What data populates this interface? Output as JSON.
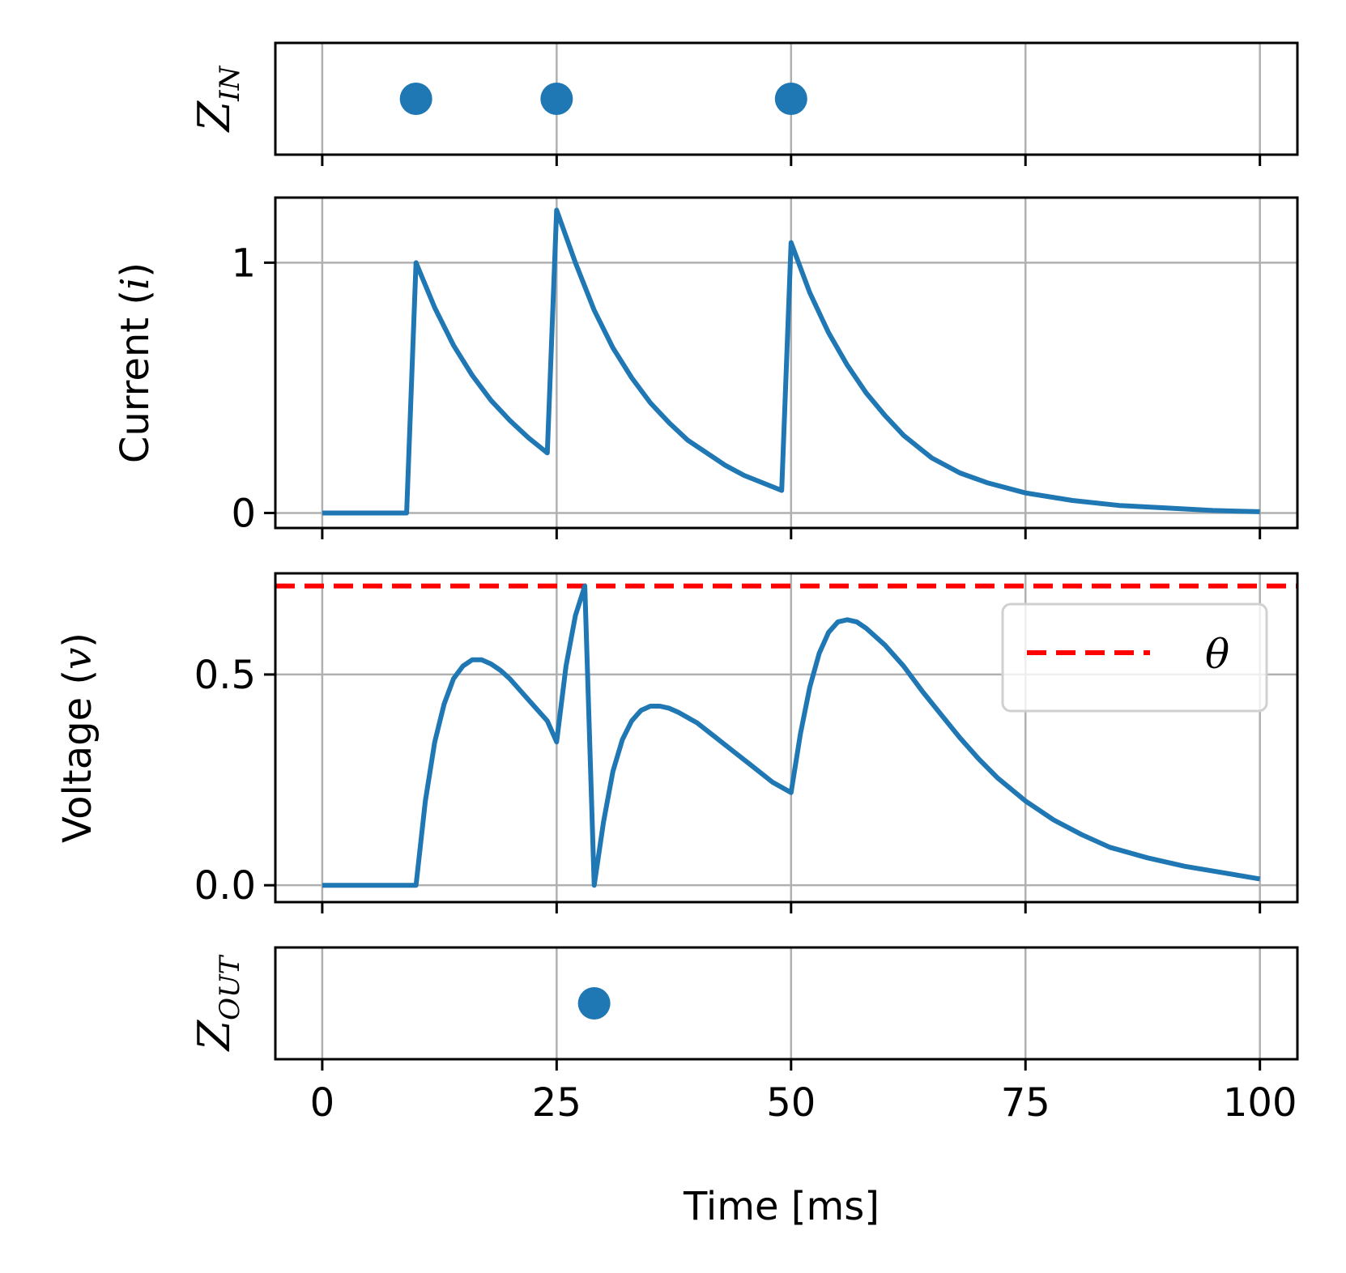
{
  "colors": {
    "series": "#1f77b4",
    "threshold": "#ff0000",
    "grid": "#b0b0b0",
    "frame": "#000000"
  },
  "chart_data": {
    "type": "multi-panel",
    "xlabel": "Time [ms]",
    "xlim": [
      -5,
      104
    ],
    "xticks": [
      "0",
      "25",
      "50",
      "75",
      "100"
    ],
    "xtick_values": [
      0,
      25,
      50,
      75,
      100
    ],
    "panels": [
      {
        "id": "z_in",
        "type": "scatter",
        "ylabel_main": "Z",
        "ylabel_sub": "IN",
        "x": [
          10,
          25,
          50
        ],
        "y": [
          0,
          0,
          0
        ],
        "ylim": [
          -1,
          1
        ]
      },
      {
        "id": "current",
        "type": "line",
        "ylabel": "Current (i)",
        "ylabel_text": "Current (",
        "ylabel_var": "i",
        "ylabel_close": ")",
        "yticks": [
          "0",
          "1"
        ],
        "ytick_values": [
          0,
          1
        ],
        "ylim": [
          -0.06,
          1.26
        ],
        "x": [
          0,
          9,
          10,
          12,
          14,
          16,
          18,
          20,
          22,
          24,
          25,
          27,
          29,
          31,
          33,
          35,
          37,
          39,
          41,
          43,
          45,
          47,
          49,
          50,
          52,
          54,
          56,
          58,
          60,
          62,
          65,
          68,
          71,
          75,
          80,
          85,
          90,
          95,
          100
        ],
        "y": [
          0,
          0,
          1.0,
          0.82,
          0.67,
          0.55,
          0.45,
          0.37,
          0.3,
          0.24,
          1.21,
          1.0,
          0.81,
          0.66,
          0.54,
          0.44,
          0.36,
          0.29,
          0.24,
          0.19,
          0.15,
          0.12,
          0.09,
          1.08,
          0.88,
          0.72,
          0.59,
          0.48,
          0.39,
          0.31,
          0.22,
          0.16,
          0.12,
          0.08,
          0.05,
          0.03,
          0.02,
          0.01,
          0.005
        ]
      },
      {
        "id": "voltage",
        "type": "line",
        "ylabel": "Voltage (v)",
        "ylabel_text": "Voltage (",
        "ylabel_var": "v",
        "ylabel_close": ")",
        "yticks": [
          "0.0",
          "0.5"
        ],
        "ytick_values": [
          0.0,
          0.5
        ],
        "ylim": [
          -0.04,
          0.74
        ],
        "threshold": 0.71,
        "legend": [
          {
            "label": "θ",
            "style": "dashed",
            "color": "#ff0000"
          }
        ],
        "legend_loc": "upper right",
        "x": [
          0,
          10,
          11,
          12,
          13,
          14,
          15,
          16,
          17,
          18,
          19,
          20,
          22,
          24,
          25,
          26,
          27,
          28,
          29,
          30,
          31,
          32,
          33,
          34,
          35,
          36,
          37,
          38,
          40,
          42,
          44,
          46,
          48,
          50,
          51,
          52,
          53,
          54,
          55,
          56,
          57,
          58,
          60,
          62,
          64,
          66,
          68,
          70,
          72,
          75,
          78,
          81,
          84,
          88,
          92,
          96,
          100
        ],
        "y": [
          0,
          0,
          0.2,
          0.34,
          0.43,
          0.49,
          0.52,
          0.535,
          0.535,
          0.525,
          0.51,
          0.49,
          0.44,
          0.39,
          0.34,
          0.52,
          0.64,
          0.71,
          0.0,
          0.15,
          0.27,
          0.345,
          0.39,
          0.415,
          0.425,
          0.425,
          0.42,
          0.41,
          0.385,
          0.35,
          0.315,
          0.28,
          0.245,
          0.22,
          0.36,
          0.47,
          0.55,
          0.6,
          0.625,
          0.63,
          0.625,
          0.61,
          0.57,
          0.52,
          0.46,
          0.405,
          0.35,
          0.3,
          0.255,
          0.2,
          0.155,
          0.12,
          0.09,
          0.065,
          0.045,
          0.03,
          0.015
        ]
      },
      {
        "id": "z_out",
        "type": "scatter",
        "ylabel_main": "Z",
        "ylabel_sub": "OUT",
        "x": [
          29
        ],
        "y": [
          0
        ],
        "ylim": [
          -1,
          1
        ]
      }
    ]
  }
}
